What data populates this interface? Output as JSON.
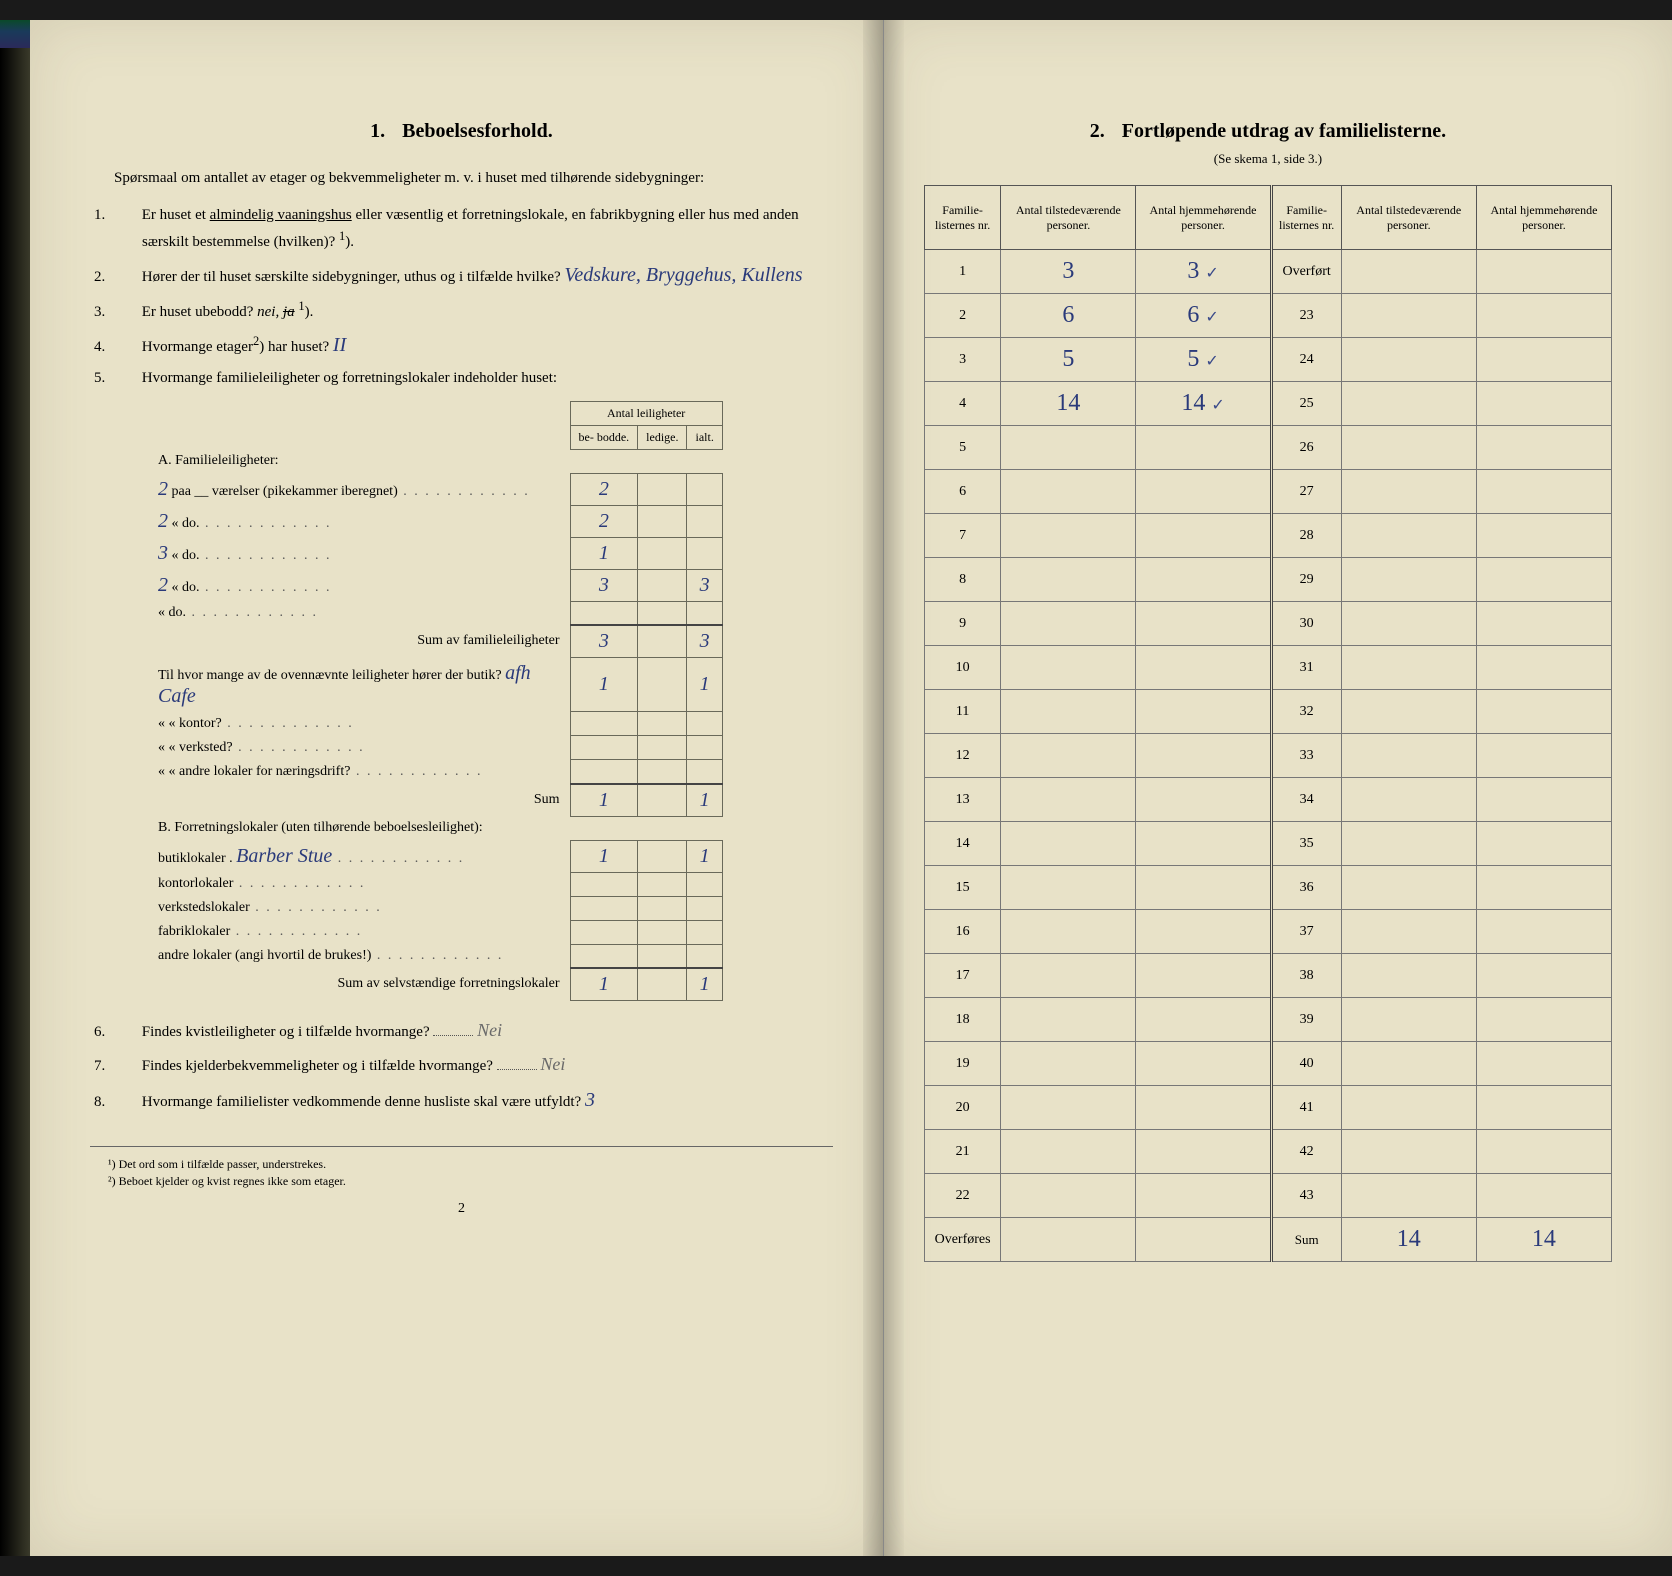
{
  "left": {
    "section_num": "1.",
    "section_title": "Beboelsesforhold.",
    "intro": "Spørsmaal om antallet av etager og bekvemmeligheter m. v. i huset med tilhørende sidebygninger:",
    "q1": {
      "num": "1.",
      "text_a": "Er huset et ",
      "underlined": "almindelig vaaningshus",
      "text_b": " eller væsentlig et forretningslokale, en fabrikbygning eller hus med anden særskilt bestemmelse (hvilken)? ",
      "sup": "1",
      "text_c": ")."
    },
    "q2": {
      "num": "2.",
      "text_a": "Hører der til huset særskilte sidebygninger, uthus og i tilfælde hvilke?",
      "answer": "Vedskure, Bryggehus, Kullens"
    },
    "q3": {
      "num": "3.",
      "text": "Er huset ubebodd? ",
      "opts": "nei, ",
      "struck": "ja",
      "sup": "1",
      "tail": ")."
    },
    "q4": {
      "num": "4.",
      "text": "Hvormange etager",
      "sup": "2",
      "tail": ") har huset?",
      "answer": "II"
    },
    "q5": {
      "num": "5.",
      "text": "Hvormange familieleiligheter og forretningslokaler indeholder huset:"
    },
    "table5": {
      "header_group": "Antal leiligheter",
      "h1": "be-\nbodde.",
      "h2": "ledige.",
      "h3": "ialt.",
      "A_label": "A. Familieleiligheter:",
      "rows_a": [
        {
          "label": "paa __ værelser (pikekammer iberegnet)",
          "hand_prefix": "2",
          "c1": "2",
          "c3": ""
        },
        {
          "label": "«     do.",
          "hand_prefix": "2",
          "c1": "2",
          "c3": ""
        },
        {
          "label": "«     do.",
          "hand_prefix": "3",
          "c1": "1",
          "c3": ""
        },
        {
          "label": "«     do.",
          "hand_prefix": "2",
          "c1": "3",
          "c3": "3"
        },
        {
          "label": "«     do.",
          "c1": "",
          "c3": ""
        }
      ],
      "sum_a_label": "Sum av familieleiligheter",
      "sum_a": {
        "c1": "3",
        "c3": "3"
      },
      "check_after_sum": "✓",
      "mid_q": "Til hvor mange av de ovennævnte leiligheter hører der butik?",
      "mid_hand": "afh Cafe",
      "mid_rows": [
        {
          "label": "«   « kontor?",
          "c1": "",
          "c3": ""
        },
        {
          "label": "«   « verksted?",
          "c1": "",
          "c3": ""
        },
        {
          "label": "«   « andre lokaler for næringsdrift?",
          "c1": "",
          "c3": ""
        }
      ],
      "mid_first": {
        "c1": "1",
        "c3": "1"
      },
      "mid_sum_label": "Sum",
      "mid_sum": {
        "c1": "1",
        "c3": "1"
      },
      "B_label": "B. Forretningslokaler (uten tilhørende beboelsesleilighet):",
      "rows_b": [
        {
          "label": "butiklokaler .",
          "hand": "Barber Stue",
          "c1": "1",
          "c3": "1"
        },
        {
          "label": "kontorlokaler",
          "c1": "",
          "c3": ""
        },
        {
          "label": "verkstedslokaler",
          "c1": "",
          "c3": ""
        },
        {
          "label": "fabriklokaler",
          "c1": "",
          "c3": ""
        },
        {
          "label": "andre lokaler (angi hvortil de brukes!)",
          "c1": "",
          "c3": ""
        }
      ],
      "sum_b_label": "Sum av selvstændige forretningslokaler",
      "sum_b": {
        "c1": "1",
        "c3": "1"
      }
    },
    "q6": {
      "num": "6.",
      "text": "Findes kvistleiligheter og i tilfælde hvormange?",
      "answer": "Nei"
    },
    "q7": {
      "num": "7.",
      "text": "Findes kjelderbekvemmeligheter og i tilfælde hvormange?",
      "answer": "Nei"
    },
    "q8": {
      "num": "8.",
      "text": "Hvormange familielister vedkommende denne husliste skal være utfyldt?",
      "answer": "3"
    },
    "footnotes": {
      "f1": "¹) Det ord som i tilfælde passer, understrekes.",
      "f2": "²) Beboet kjelder og kvist regnes ikke som etager."
    },
    "pagenum": "2"
  },
  "right": {
    "section_num": "2.",
    "section_title": "Fortløpende utdrag av familielisterne.",
    "subref": "(Se skema 1, side 3.)",
    "headers": {
      "h1": "Familie-\nlisternes\nnr.",
      "h2": "Antal\ntilstedeværende\npersoner.",
      "h3": "Antal\nhjemmehørende\npersoner.",
      "h4": "Familie-\nlisternes\nnr.",
      "h5": "Antal\ntilstedeværende\npersoner.",
      "h6": "Antal\nhjemmehørende\npersoner."
    },
    "rows_left": [
      {
        "n": "1",
        "v1": "3",
        "v2": "3",
        "chk": "✓",
        "tick": "〃"
      },
      {
        "n": "2",
        "v1": "6",
        "v2": "6",
        "chk": "✓",
        "tick": "〃"
      },
      {
        "n": "3",
        "v1": "5",
        "v2": "5",
        "chk": "✓",
        "tick": "〃"
      },
      {
        "n": "4",
        "v1": "14",
        "v2": "14",
        "chk": "✓"
      },
      {
        "n": "5"
      },
      {
        "n": "6"
      },
      {
        "n": "7"
      },
      {
        "n": "8"
      },
      {
        "n": "9"
      },
      {
        "n": "10"
      },
      {
        "n": "11"
      },
      {
        "n": "12"
      },
      {
        "n": "13"
      },
      {
        "n": "14"
      },
      {
        "n": "15"
      },
      {
        "n": "16"
      },
      {
        "n": "17"
      },
      {
        "n": "18"
      },
      {
        "n": "19"
      },
      {
        "n": "20"
      },
      {
        "n": "21"
      },
      {
        "n": "22"
      }
    ],
    "rows_right": [
      {
        "n": "Overført",
        "overf": true
      },
      {
        "n": "23"
      },
      {
        "n": "24"
      },
      {
        "n": "25"
      },
      {
        "n": "26"
      },
      {
        "n": "27"
      },
      {
        "n": "28"
      },
      {
        "n": "29"
      },
      {
        "n": "30"
      },
      {
        "n": "31"
      },
      {
        "n": "32"
      },
      {
        "n": "33"
      },
      {
        "n": "34"
      },
      {
        "n": "35"
      },
      {
        "n": "36"
      },
      {
        "n": "37"
      },
      {
        "n": "38"
      },
      {
        "n": "39"
      },
      {
        "n": "40"
      },
      {
        "n": "41"
      },
      {
        "n": "42"
      },
      {
        "n": "43"
      }
    ],
    "footer_left": "Overføres",
    "footer_right": "Sum",
    "sum_v1": "14",
    "sum_v2": "14"
  },
  "colors": {
    "paper": "#e8e2c8",
    "ink": "#1a1a1a",
    "handwriting": "#2a3a7a",
    "handwriting_gray": "#6a6a6a",
    "rule": "#69695a"
  }
}
